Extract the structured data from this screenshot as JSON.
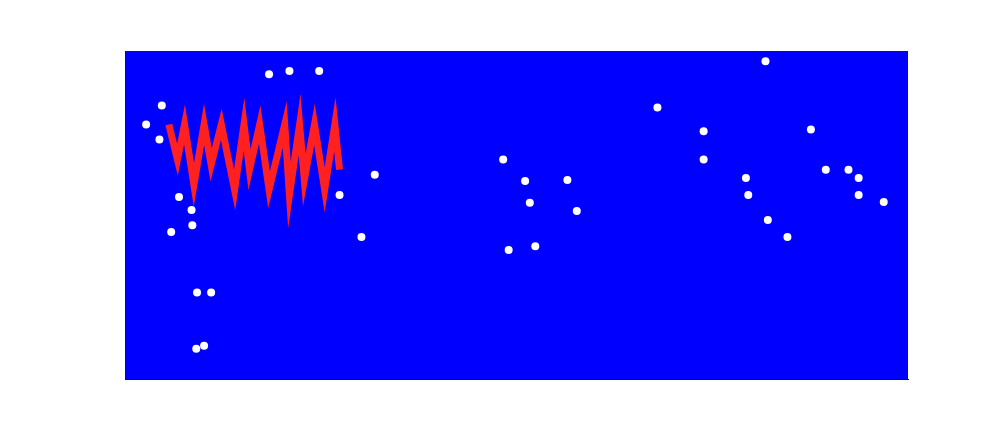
{
  "chart_data": {
    "type": "scatter",
    "xlim": [
      0,
      100
    ],
    "ylim": [
      0,
      100
    ],
    "tick_labels": false,
    "grid": false,
    "series": [
      {
        "type": "line",
        "color": "#ff2020",
        "x": [
          5.6,
          6.7,
          7.6,
          8.8,
          10.1,
          11.0,
          12.3,
          14.0,
          15.2,
          15.9,
          17.2,
          18.4,
          20.4,
          21.0,
          22.3,
          22.9,
          24.2,
          25.5,
          26.8,
          27.4
        ],
        "values": [
          77.6,
          66.9,
          77.6,
          59.2,
          77.6,
          65.3,
          77.6,
          57.7,
          77.6,
          63.8,
          77.6,
          57.7,
          77.6,
          56.1,
          77.6,
          60.7,
          77.6,
          57.7,
          77.6,
          63.8
        ]
      },
      {
        "type": "scatter",
        "color": "#ffffff",
        "x": [
          2.7,
          4.4,
          6.9,
          8.5,
          5.9,
          8.6,
          9.2,
          11.0,
          9.1,
          10.1,
          30.2,
          27.4,
          31.9,
          18.4,
          21.0,
          24.8,
          68.0,
          73.9,
          73.9,
          79.3,
          79.6,
          82.1,
          84.6,
          87.6,
          89.5,
          92.4,
          93.7,
          93.7,
          96.9,
          48.3,
          51.1,
          56.5,
          51.7,
          57.7,
          49.0,
          52.4,
          81.8,
          4.7
        ],
        "values": [
          77.6,
          73.0,
          55.5,
          51.5,
          44.8,
          46.9,
          26.4,
          26.4,
          9.2,
          10.1,
          43.3,
          56.1,
          62.3,
          92.9,
          93.9,
          93.9,
          82.8,
          75.5,
          66.9,
          61.3,
          56.1,
          48.5,
          43.3,
          76.1,
          63.8,
          63.8,
          61.3,
          56.1,
          54.0,
          66.9,
          60.4,
          60.7,
          53.7,
          51.2,
          39.3,
          40.5,
          96.9,
          83.4
        ]
      }
    ]
  }
}
